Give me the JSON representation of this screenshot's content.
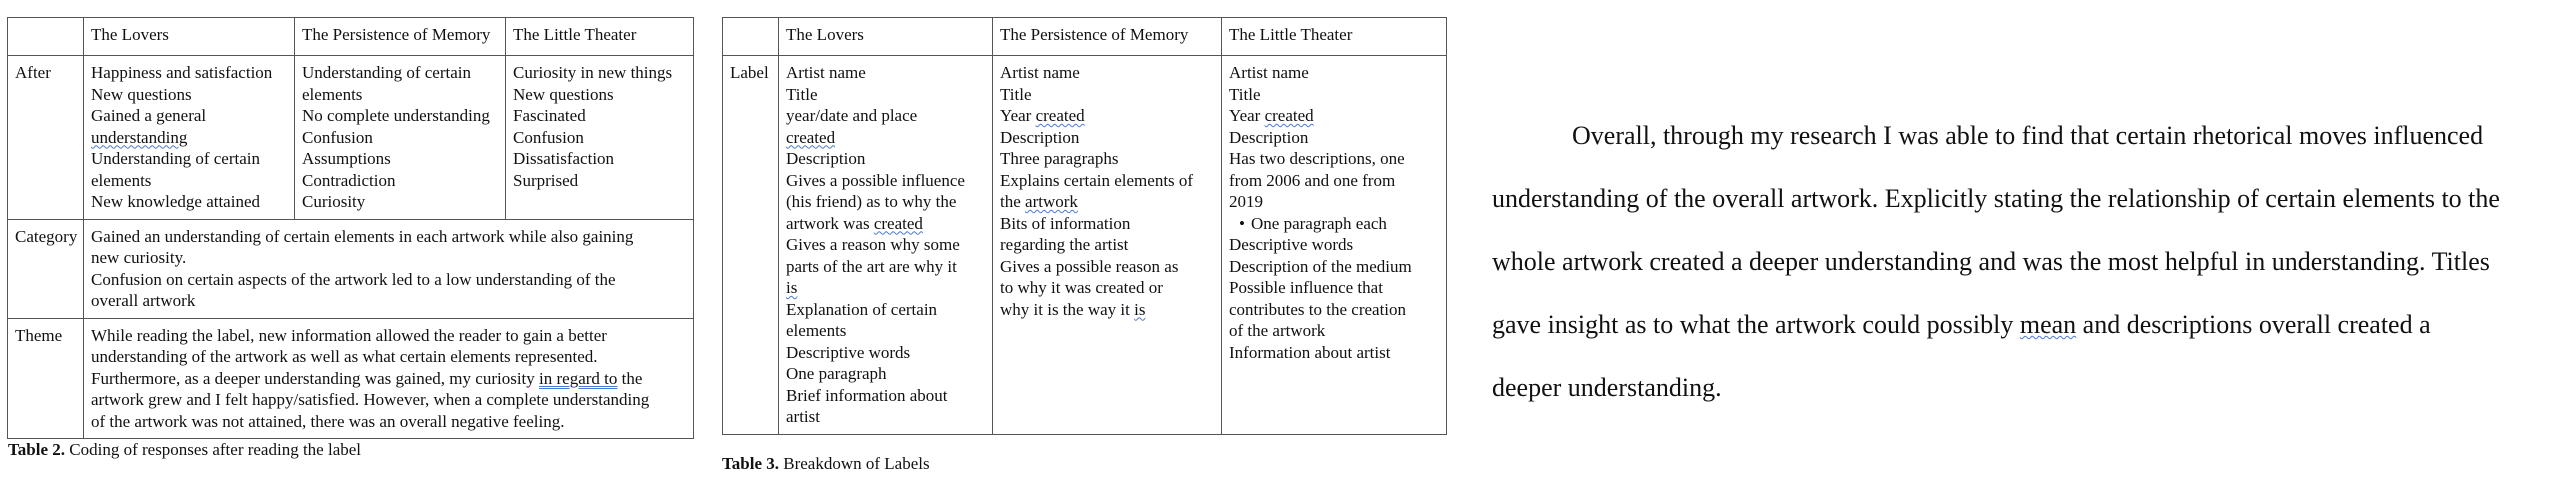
{
  "table2": {
    "headers": [
      "",
      "The Lovers",
      "The Persistence of Memory",
      "The Little Theater"
    ],
    "after": {
      "label": "After",
      "lovers": [
        "Happiness and satisfaction",
        "New questions",
        "Gained a general",
        "understanding",
        "Understanding of certain",
        "elements",
        "New knowledge attained"
      ],
      "memory": [
        "Understanding of certain",
        "elements",
        "No complete understanding",
        "Confusion",
        "Assumptions",
        "Contradiction",
        "Curiosity"
      ],
      "theater": [
        "Curiosity in new things",
        "New questions",
        "Fascinated",
        "Confusion",
        "Dissatisfaction",
        "Surprised"
      ]
    },
    "category": {
      "label": "Category",
      "lines": [
        "Gained an understanding of certain elements in each artwork while also gaining",
        "new curiosity.",
        "Confusion on certain aspects of the artwork led to a low understanding of the",
        "overall artwork"
      ]
    },
    "theme": {
      "label": "Theme",
      "line1": "While reading the label, new information allowed the reader to gain a better",
      "line2": "understanding of the artwork as well as what certain elements represented.",
      "line3_pre": "Furthermore, as a deeper understanding was gained, my curiosity ",
      "line3_mark": "in regard to",
      "line3_post": " the",
      "line4": "artwork grew and I felt happy/satisfied. However, when a complete understanding",
      "line5": "of the artwork was not attained, there was an overall negative feeling."
    },
    "caption_bold": "Table 2.",
    "caption_text": " Coding of responses after reading the label"
  },
  "table3": {
    "headers": [
      "",
      "The Lovers",
      "The Persistence of Memory",
      "The Little Theater"
    ],
    "label": "Label",
    "lovers": {
      "l1": "Artist name",
      "l2": "Title",
      "l3": "year/date and place",
      "l4": "created",
      "l5": "Description",
      "l6": "Gives a possible influence",
      "l7": "(his friend) as to why the",
      "l8_pre": "artwork was ",
      "l8_mark": "created",
      "l9": "Gives a reason why some",
      "l10": "parts of the art are why it",
      "l11": "is",
      "l12": "Explanation of certain",
      "l13": "elements",
      "l14": "Descriptive words",
      "l15": "One paragraph",
      "l16": "Brief information about",
      "l17": "artist"
    },
    "memory": {
      "l1": "Artist name",
      "l2": "Title",
      "l3_pre": "Year ",
      "l3_mark": "created",
      "l4": "Description",
      "l5": "Three paragraphs",
      "l6": "Explains certain elements of",
      "l7_pre": "the ",
      "l7_mark": "artwork",
      "l8": "Bits of information",
      "l9": "regarding the artist",
      "l10": "Gives a possible reason as",
      "l11": "to why it was created or",
      "l12_pre": "why it is the way it ",
      "l12_mark": "is"
    },
    "theater": {
      "l1": "Artist name",
      "l2": "Title",
      "l3_pre": "Year ",
      "l3_mark": "created",
      "l4": "Description",
      "l5": "Has two descriptions, one",
      "l6": "from 2006 and one from",
      "l7": "2019",
      "l8": "One paragraph each",
      "l9": "Descriptive words",
      "l10": "Description of the medium",
      "l11": "Possible influence that",
      "l12": "contributes to the creation",
      "l13": "of the artwork",
      "l14": "Information about artist"
    },
    "caption_bold": "Table 3.",
    "caption_text": " Breakdown of Labels"
  },
  "paragraph": {
    "line1": "Overall, through my research I was able to find that certain rhetorical moves influenced",
    "line2": "understanding of the overall artwork. Explicitly stating the relationship of certain elements to the",
    "line3": "whole artwork created a deeper understanding and was the most helpful in understanding. Titles",
    "line4_pre": "gave insight as to what the artwork could possibly ",
    "line4_mark": "mean",
    "line4_post": " and descriptions overall created a",
    "line5": "deeper understanding."
  },
  "colors": {
    "text": "#111111",
    "border": "#555555",
    "proofing_underline": "#4a78d6"
  }
}
